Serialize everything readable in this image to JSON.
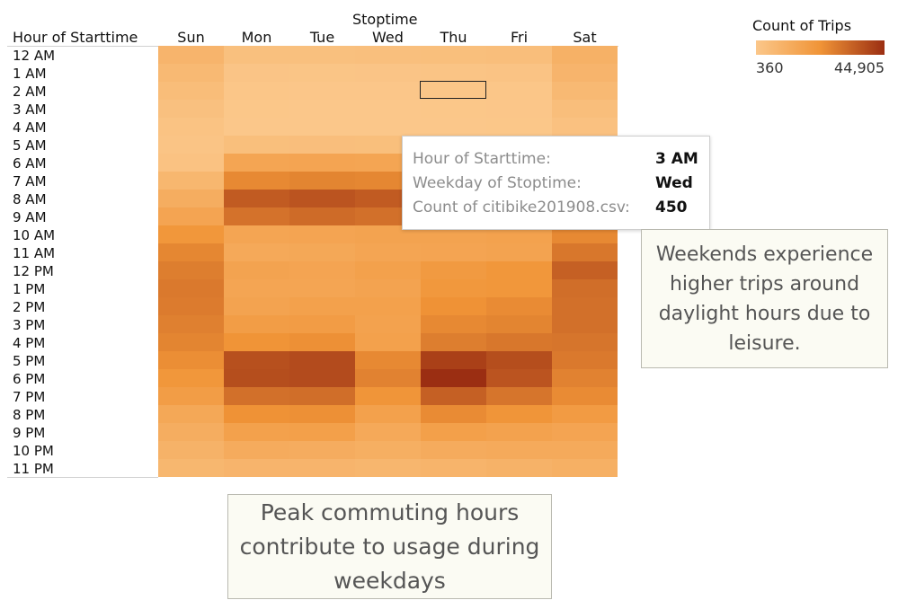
{
  "chart_data": {
    "type": "heatmap",
    "row_header": "Hour of Starttime",
    "column_title": "Stoptime",
    "columns": [
      "Sun",
      "Mon",
      "Tue",
      "Wed",
      "Thu",
      "Fri",
      "Sat"
    ],
    "rows": [
      "12 AM",
      "1 AM",
      "2 AM",
      "3 AM",
      "4 AM",
      "5 AM",
      "6 AM",
      "7 AM",
      "8 AM",
      "9 AM",
      "10 AM",
      "11 AM",
      "12 PM",
      "1 PM",
      "2 PM",
      "3 PM",
      "4 PM",
      "5 PM",
      "6 PM",
      "7 PM",
      "8 PM",
      "9 PM",
      "10 PM",
      "11 PM"
    ],
    "values": [
      [
        8500,
        3600,
        3600,
        3800,
        4000,
        4500,
        10000
      ],
      [
        6500,
        1500,
        1400,
        1500,
        1600,
        2000,
        8500
      ],
      [
        4800,
        800,
        700,
        750,
        800,
        1000,
        6500
      ],
      [
        3400,
        500,
        450,
        450,
        500,
        700,
        4500
      ],
      [
        2200,
        400,
        360,
        380,
        400,
        500,
        3000
      ],
      [
        1600,
        4000,
        4100,
        4000,
        3900,
        3600,
        2500
      ],
      [
        2600,
        15000,
        15500,
        15000,
        15500,
        14000,
        4500
      ],
      [
        7500,
        25000,
        26000,
        25500,
        26000,
        23000,
        9000
      ],
      [
        11500,
        35000,
        36500,
        35000,
        35500,
        32000,
        14000
      ],
      [
        15500,
        30000,
        31500,
        30500,
        30000,
        28000,
        19000
      ],
      [
        21500,
        15000,
        15500,
        16000,
        16000,
        16500,
        25000
      ],
      [
        25500,
        13500,
        14000,
        15000,
        15500,
        16000,
        29000
      ],
      [
        27500,
        16000,
        15500,
        17000,
        20000,
        21500,
        34000
      ],
      [
        28500,
        15000,
        15000,
        16000,
        21000,
        21500,
        31000
      ],
      [
        28000,
        16000,
        17000,
        17000,
        23000,
        24500,
        30500
      ],
      [
        27000,
        18500,
        19000,
        16500,
        25000,
        26000,
        30500
      ],
      [
        26000,
        22500,
        23500,
        17000,
        27500,
        29000,
        29500
      ],
      [
        24000,
        37500,
        38500,
        25000,
        41000,
        38000,
        28500
      ],
      [
        21500,
        38000,
        38500,
        26500,
        44905,
        36500,
        26500
      ],
      [
        18500,
        30500,
        31000,
        22000,
        34000,
        29500,
        24500
      ],
      [
        14000,
        23000,
        23500,
        17000,
        24500,
        22000,
        19500
      ],
      [
        11500,
        17000,
        17500,
        13500,
        17500,
        16500,
        15500
      ],
      [
        9500,
        12500,
        12000,
        11000,
        12500,
        13000,
        13000
      ],
      [
        7500,
        8500,
        8500,
        8000,
        8700,
        9500,
        10500
      ]
    ],
    "color_scale": {
      "title": "Count of Trips",
      "min": 360,
      "max": 44905,
      "min_label": "360",
      "max_label": "44,905",
      "colors": [
        "#fbc78a",
        "#f09437",
        "#9b2e12"
      ]
    },
    "highlighted_cell": {
      "row": "2 AM",
      "column": "Thu"
    }
  },
  "tooltip": {
    "rows": [
      {
        "key": "Hour of Starttime:",
        "value": "3 AM"
      },
      {
        "key": "Weekday of Stoptime:",
        "value": "Wed"
      },
      {
        "key": "Count of citibike201908.csv:",
        "value": "450"
      }
    ]
  },
  "annotations": {
    "weekend_note": "Weekends experience higher trips around daylight hours due to leisure.",
    "commute_note": "Peak commuting hours contribute to usage during weekdays"
  }
}
